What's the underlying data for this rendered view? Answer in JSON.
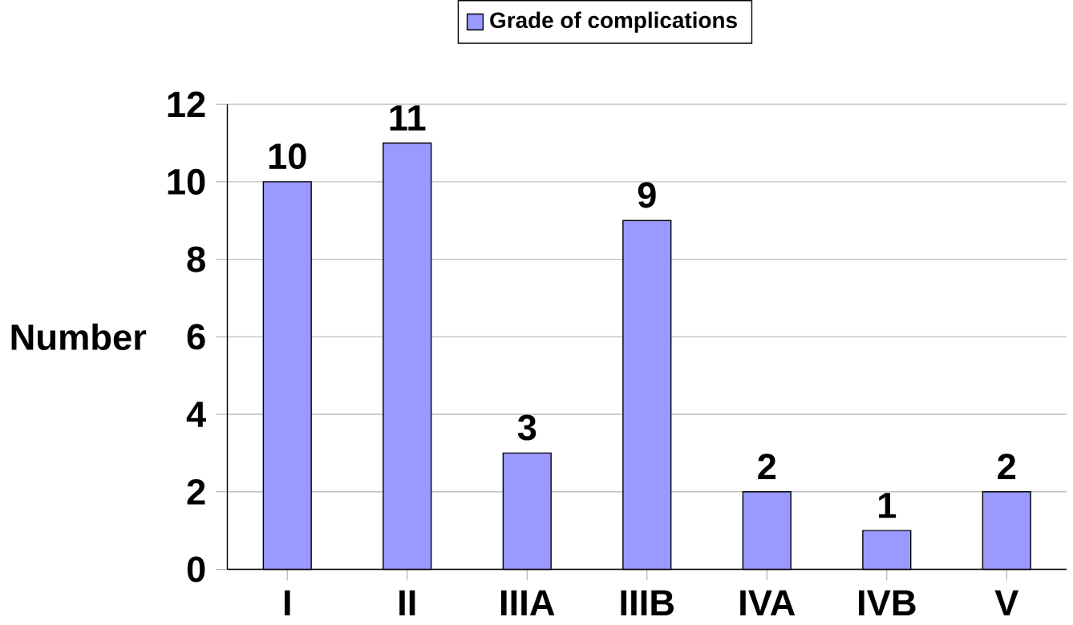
{
  "chart_data": {
    "type": "bar",
    "ylabel": "Number",
    "categories": [
      "I",
      "II",
      "IIIA",
      "IIIB",
      "IVA",
      "IVB",
      "V"
    ],
    "series": [
      {
        "name": "Grade of complications",
        "color": "#9999ff",
        "values": [
          10,
          11,
          3,
          9,
          2,
          1,
          2
        ]
      }
    ],
    "ylim": [
      0,
      12
    ],
    "yticks": [
      0,
      2,
      4,
      6,
      8,
      10,
      12
    ],
    "grid": "y",
    "legend": "top",
    "data_labels": true
  }
}
